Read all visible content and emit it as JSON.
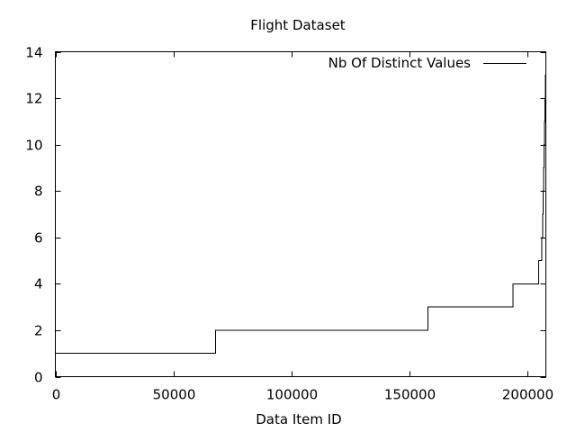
{
  "chart_data": {
    "type": "line",
    "title": "Flight Dataset",
    "xlabel": "Data Item ID",
    "ylabel": "",
    "xlim": [
      0,
      208000
    ],
    "ylim": [
      0,
      14
    ],
    "xticks": [
      0,
      50000,
      100000,
      150000,
      200000
    ],
    "yticks": [
      0,
      2,
      4,
      6,
      8,
      10,
      12,
      14
    ],
    "grid": false,
    "legend": "top-right",
    "series": [
      {
        "name": "Nb Of Distinct Values",
        "color": "#000000",
        "step": true,
        "x": [
          0,
          68000,
          68000,
          158000,
          158000,
          194000,
          194000,
          205000,
          205000,
          206200,
          206200,
          206600,
          206600,
          206900,
          206900,
          207100,
          207100,
          207300,
          207300,
          207500,
          207500,
          207700,
          207700,
          207900,
          207900,
          208000
        ],
        "y": [
          1,
          1,
          2,
          2,
          3,
          3,
          4,
          4,
          5,
          5,
          6,
          6,
          7,
          7,
          8,
          8,
          9,
          9,
          10,
          10,
          11,
          11,
          12,
          12,
          13,
          13
        ]
      }
    ]
  }
}
